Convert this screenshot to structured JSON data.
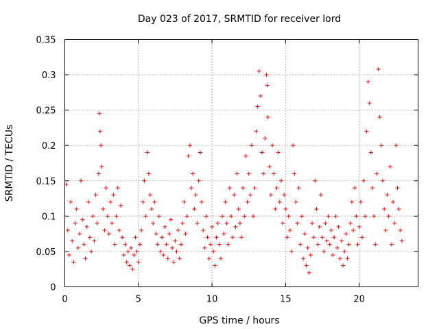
{
  "chart_data": {
    "type": "scatter",
    "title": "Day 023 of 2017, SRMTID for receiver lord",
    "xlabel": "GPS time / hours",
    "ylabel": "SRMTID / TECUs",
    "xlim": [
      0,
      24
    ],
    "ylim": [
      0,
      0.35
    ],
    "xticks": [
      0,
      5,
      10,
      15,
      20
    ],
    "xtick_labels": [
      "0",
      "5",
      "10",
      "15",
      "20"
    ],
    "yticks": [
      0,
      0.05,
      0.1,
      0.15,
      0.2,
      0.25,
      0.3,
      0.35
    ],
    "ytick_labels": [
      "0",
      "0.05",
      "0.1",
      "0.15",
      "0.2",
      "0.25",
      "0.3",
      "0.35"
    ],
    "grid": true,
    "marker": "+",
    "color": "#ff0000",
    "series": [
      {
        "name": "SRMTID",
        "points": [
          [
            0.1,
            0.145
          ],
          [
            0.2,
            0.08
          ],
          [
            0.3,
            0.045
          ],
          [
            0.4,
            0.12
          ],
          [
            0.5,
            0.065
          ],
          [
            0.6,
            0.035
          ],
          [
            0.7,
            0.09
          ],
          [
            0.8,
            0.11
          ],
          [
            0.9,
            0.055
          ],
          [
            1.0,
            0.075
          ],
          [
            1.1,
            0.15
          ],
          [
            1.2,
            0.095
          ],
          [
            1.3,
            0.06
          ],
          [
            1.4,
            0.04
          ],
          [
            1.5,
            0.085
          ],
          [
            1.6,
            0.12
          ],
          [
            1.7,
            0.07
          ],
          [
            1.8,
            0.05
          ],
          [
            1.9,
            0.1
          ],
          [
            2.0,
            0.065
          ],
          [
            2.1,
            0.13
          ],
          [
            2.2,
            0.09
          ],
          [
            2.3,
            0.16
          ],
          [
            2.35,
            0.245
          ],
          [
            2.4,
            0.22
          ],
          [
            2.45,
            0.2
          ],
          [
            2.5,
            0.17
          ],
          [
            2.6,
            0.11
          ],
          [
            2.7,
            0.08
          ],
          [
            2.8,
            0.14
          ],
          [
            2.9,
            0.1
          ],
          [
            3.0,
            0.075
          ],
          [
            3.1,
            0.12
          ],
          [
            3.2,
            0.09
          ],
          [
            3.3,
            0.13
          ],
          [
            3.4,
            0.06
          ],
          [
            3.5,
            0.1
          ],
          [
            3.6,
            0.14
          ],
          [
            3.7,
            0.08
          ],
          [
            3.8,
            0.115
          ],
          [
            3.9,
            0.07
          ],
          [
            4.0,
            0.045
          ],
          [
            4.1,
            0.06
          ],
          [
            4.2,
            0.035
          ],
          [
            4.3,
            0.05
          ],
          [
            4.4,
            0.03
          ],
          [
            4.5,
            0.055
          ],
          [
            4.6,
            0.025
          ],
          [
            4.7,
            0.045
          ],
          [
            4.8,
            0.07
          ],
          [
            4.9,
            0.05
          ],
          [
            5.0,
            0.035
          ],
          [
            5.1,
            0.06
          ],
          [
            5.2,
            0.08
          ],
          [
            5.3,
            0.12
          ],
          [
            5.4,
            0.15
          ],
          [
            5.5,
            0.1
          ],
          [
            5.6,
            0.19
          ],
          [
            5.7,
            0.16
          ],
          [
            5.8,
            0.13
          ],
          [
            5.9,
            0.11
          ],
          [
            6.0,
            0.09
          ],
          [
            6.1,
            0.12
          ],
          [
            6.2,
            0.075
          ],
          [
            6.3,
            0.06
          ],
          [
            6.4,
            0.1
          ],
          [
            6.5,
            0.05
          ],
          [
            6.6,
            0.07
          ],
          [
            6.7,
            0.045
          ],
          [
            6.8,
            0.085
          ],
          [
            6.9,
            0.06
          ],
          [
            7.0,
            0.04
          ],
          [
            7.1,
            0.075
          ],
          [
            7.2,
            0.095
          ],
          [
            7.3,
            0.055
          ],
          [
            7.4,
            0.035
          ],
          [
            7.5,
            0.065
          ],
          [
            7.6,
            0.05
          ],
          [
            7.7,
            0.08
          ],
          [
            7.8,
            0.04
          ],
          [
            7.9,
            0.06
          ],
          [
            8.0,
            0.09
          ],
          [
            8.1,
            0.12
          ],
          [
            8.2,
            0.075
          ],
          [
            8.3,
            0.1
          ],
          [
            8.4,
            0.185
          ],
          [
            8.5,
            0.2
          ],
          [
            8.6,
            0.14
          ],
          [
            8.7,
            0.16
          ],
          [
            8.8,
            0.11
          ],
          [
            8.9,
            0.13
          ],
          [
            9.0,
            0.09
          ],
          [
            9.1,
            0.15
          ],
          [
            9.2,
            0.19
          ],
          [
            9.3,
            0.12
          ],
          [
            9.4,
            0.08
          ],
          [
            9.5,
            0.055
          ],
          [
            9.6,
            0.1
          ],
          [
            9.7,
            0.07
          ],
          [
            9.8,
            0.04
          ],
          [
            9.9,
            0.06
          ],
          [
            10.0,
            0.085
          ],
          [
            10.1,
            0.05
          ],
          [
            10.2,
            0.03
          ],
          [
            10.3,
            0.07
          ],
          [
            10.4,
            0.09
          ],
          [
            10.5,
            0.06
          ],
          [
            10.6,
            0.04
          ],
          [
            10.7,
            0.1
          ],
          [
            10.8,
            0.075
          ],
          [
            10.9,
            0.12
          ],
          [
            11.0,
            0.09
          ],
          [
            11.1,
            0.06
          ],
          [
            11.2,
            0.14
          ],
          [
            11.3,
            0.1
          ],
          [
            11.4,
            0.07
          ],
          [
            11.5,
            0.13
          ],
          [
            11.6,
            0.085
          ],
          [
            11.7,
            0.16
          ],
          [
            11.8,
            0.11
          ],
          [
            11.9,
            0.09
          ],
          [
            12.0,
            0.07
          ],
          [
            12.1,
            0.14
          ],
          [
            12.2,
            0.1
          ],
          [
            12.3,
            0.185
          ],
          [
            12.4,
            0.12
          ],
          [
            12.5,
            0.16
          ],
          [
            12.6,
            0.13
          ],
          [
            12.7,
            0.2
          ],
          [
            12.8,
            0.1
          ],
          [
            12.9,
            0.14
          ],
          [
            13.0,
            0.22
          ],
          [
            13.1,
            0.255
          ],
          [
            13.2,
            0.305
          ],
          [
            13.3,
            0.27
          ],
          [
            13.4,
            0.19
          ],
          [
            13.5,
            0.16
          ],
          [
            13.6,
            0.21
          ],
          [
            13.7,
            0.3
          ],
          [
            13.75,
            0.285
          ],
          [
            13.8,
            0.24
          ],
          [
            13.9,
            0.17
          ],
          [
            14.0,
            0.13
          ],
          [
            14.1,
            0.2
          ],
          [
            14.2,
            0.16
          ],
          [
            14.3,
            0.11
          ],
          [
            14.4,
            0.14
          ],
          [
            14.5,
            0.19
          ],
          [
            14.6,
            0.12
          ],
          [
            14.7,
            0.15
          ],
          [
            14.8,
            0.09
          ],
          [
            14.9,
            0.13
          ],
          [
            15.0,
            0.11
          ],
          [
            15.1,
            0.07
          ],
          [
            15.2,
            0.1
          ],
          [
            15.3,
            0.08
          ],
          [
            15.4,
            0.05
          ],
          [
            15.5,
            0.2
          ],
          [
            15.6,
            0.16
          ],
          [
            15.7,
            0.12
          ],
          [
            15.8,
            0.09
          ],
          [
            15.9,
            0.14
          ],
          [
            16.0,
            0.06
          ],
          [
            16.1,
            0.1
          ],
          [
            16.2,
            0.04
          ],
          [
            16.3,
            0.075
          ],
          [
            16.4,
            0.03
          ],
          [
            16.5,
            0.055
          ],
          [
            16.6,
            0.02
          ],
          [
            16.7,
            0.045
          ],
          [
            16.8,
            0.09
          ],
          [
            16.9,
            0.07
          ],
          [
            17.0,
            0.15
          ],
          [
            17.1,
            0.11
          ],
          [
            17.2,
            0.06
          ],
          [
            17.3,
            0.085
          ],
          [
            17.4,
            0.13
          ],
          [
            17.5,
            0.07
          ],
          [
            17.6,
            0.05
          ],
          [
            17.7,
            0.09
          ],
          [
            17.8,
            0.065
          ],
          [
            17.9,
            0.1
          ],
          [
            18.0,
            0.06
          ],
          [
            18.1,
            0.08
          ],
          [
            18.2,
            0.045
          ],
          [
            18.3,
            0.07
          ],
          [
            18.4,
            0.1
          ],
          [
            18.5,
            0.055
          ],
          [
            18.6,
            0.085
          ],
          [
            18.7,
            0.04
          ],
          [
            18.8,
            0.065
          ],
          [
            18.9,
            0.03
          ],
          [
            19.0,
            0.05
          ],
          [
            19.1,
            0.075
          ],
          [
            19.2,
            0.04
          ],
          [
            19.3,
            0.06
          ],
          [
            19.4,
            0.09
          ],
          [
            19.5,
            0.12
          ],
          [
            19.6,
            0.08
          ],
          [
            19.7,
            0.14
          ],
          [
            19.8,
            0.1
          ],
          [
            19.9,
            0.06
          ],
          [
            20.0,
            0.085
          ],
          [
            20.1,
            0.12
          ],
          [
            20.2,
            0.07
          ],
          [
            20.3,
            0.15
          ],
          [
            20.4,
            0.1
          ],
          [
            20.5,
            0.22
          ],
          [
            20.6,
            0.29
          ],
          [
            20.7,
            0.26
          ],
          [
            20.8,
            0.19
          ],
          [
            20.9,
            0.14
          ],
          [
            21.0,
            0.1
          ],
          [
            21.1,
            0.06
          ],
          [
            21.2,
            0.16
          ],
          [
            21.3,
            0.308
          ],
          [
            21.4,
            0.24
          ],
          [
            21.5,
            0.2
          ],
          [
            21.6,
            0.15
          ],
          [
            21.7,
            0.11
          ],
          [
            21.8,
            0.08
          ],
          [
            21.9,
            0.13
          ],
          [
            22.0,
            0.1
          ],
          [
            22.1,
            0.17
          ],
          [
            22.2,
            0.06
          ],
          [
            22.3,
            0.12
          ],
          [
            22.4,
            0.09
          ],
          [
            22.5,
            0.2
          ],
          [
            22.6,
            0.14
          ],
          [
            22.7,
            0.11
          ],
          [
            22.8,
            0.08
          ],
          [
            22.9,
            0.065
          ]
        ]
      }
    ]
  }
}
